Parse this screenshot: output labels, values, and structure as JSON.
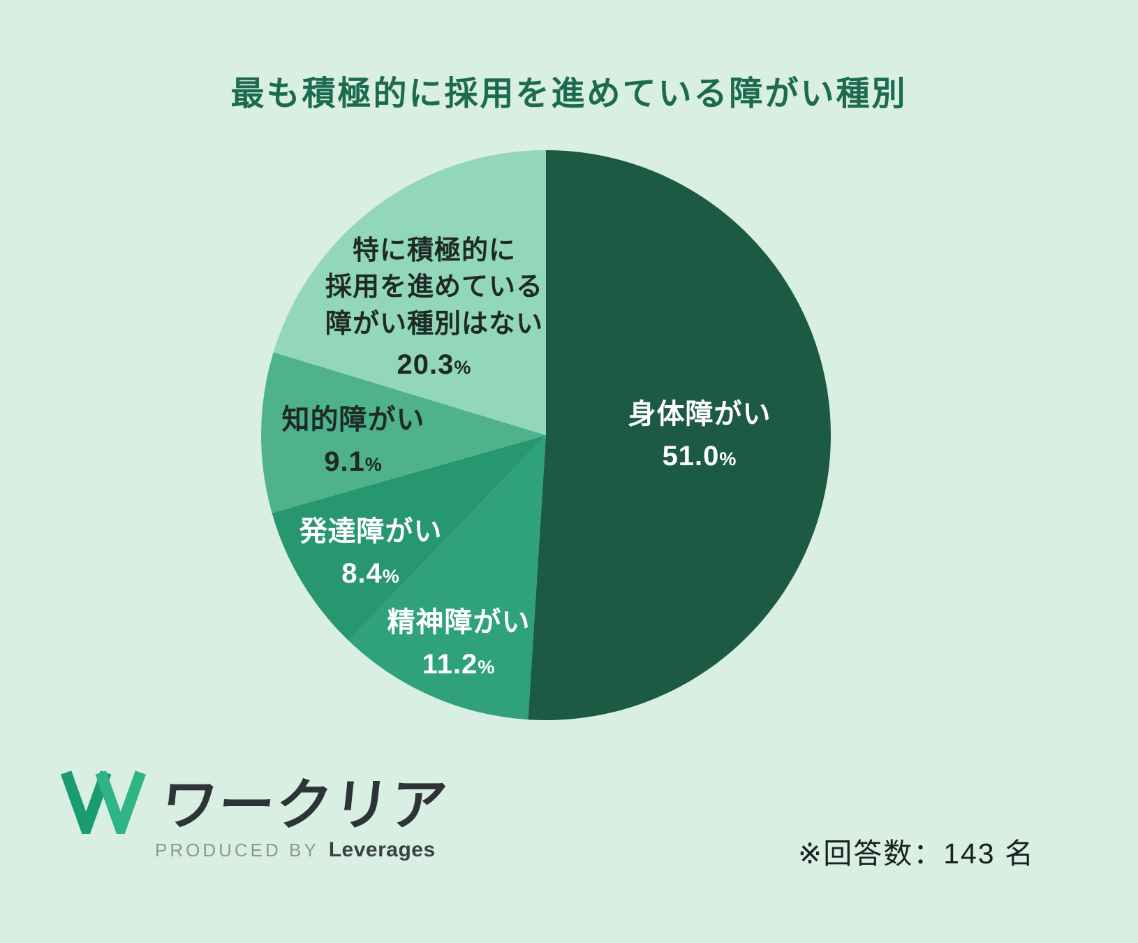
{
  "chart_data": {
    "type": "pie",
    "title": "最も積極的に採用を進めている障がい種別",
    "unit": "%",
    "start_angle": "12-o-clock",
    "direction": "clockwise",
    "legend_position": "labels-on-slices",
    "slices": [
      {
        "label": "身体障がい",
        "value": 51.0,
        "value_label": "51.0",
        "color": "#1c5a43",
        "text_color": "#ffffff"
      },
      {
        "label": "精神障がい",
        "value": 11.2,
        "value_label": "11.2",
        "color": "#2fa17b",
        "text_color": "#ffffff"
      },
      {
        "label": "発達障がい",
        "value": 8.4,
        "value_label": "8.4",
        "color": "#27976f",
        "text_color": "#ffffff"
      },
      {
        "label": "知的障がい",
        "value": 9.1,
        "value_label": "9.1",
        "color": "#4fb28c",
        "text_color": "#1d2a25"
      },
      {
        "label": "特に積極的に\n採用を進めている\n障がい種別はない",
        "value": 20.3,
        "value_label": "20.3",
        "color": "#92d7ba",
        "text_color": "#1d2a25"
      }
    ]
  },
  "footer": {
    "logo_text": "ワークリア",
    "produced_by_label": "PRODUCED BY",
    "produced_by_brand": "Leverages",
    "note": "※回答数：143 名"
  },
  "colors": {
    "background": "#d9efe4",
    "title": "#1c6b4f",
    "logo_green_dark": "#1b9b72",
    "logo_green_light": "#2fb585"
  }
}
